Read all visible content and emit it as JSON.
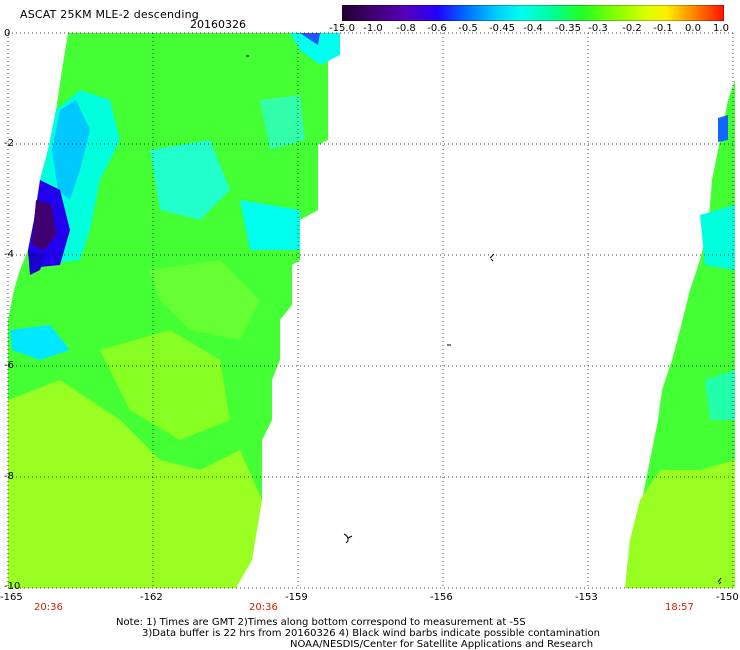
{
  "header": {
    "title": "ASCAT 25KM MLE-2 descending",
    "date": "20160326"
  },
  "colorbar": {
    "labels": [
      "-15.0",
      "-1.0",
      "-0.8",
      "-0.6",
      "-0.5",
      "-0.45",
      "-0.4",
      "-0.35",
      "-0.3",
      "-0.2",
      "-0.1",
      "0.0",
      "1.0"
    ],
    "colors": [
      "#2a0040",
      "#5a00a0",
      "#3300ff",
      "#0055ff",
      "#00a0ff",
      "#00e8ff",
      "#00ffcc",
      "#00ff66",
      "#33ff00",
      "#aaff00",
      "#ffff00",
      "#ff8800",
      "#ff2200"
    ]
  },
  "map": {
    "y_labels": [
      "0",
      "-2",
      "-4",
      "-6",
      "-8",
      "-10"
    ],
    "x_labels": [
      "-165",
      "-162",
      "-159",
      "-156",
      "-153",
      "-150"
    ],
    "time_labels": [
      "20:36",
      "20:36",
      "18:57"
    ]
  },
  "notes": {
    "line1": "Note: 1) Times are GMT 2)Times along bottom correspond to measurement at -5S",
    "line2": "3)Data buffer is 22 hrs from 20160326 4) Black wind barbs indicate possible contamination",
    "line3": "NOAA/NESDIS/Center for Satellite Applications and Research"
  }
}
